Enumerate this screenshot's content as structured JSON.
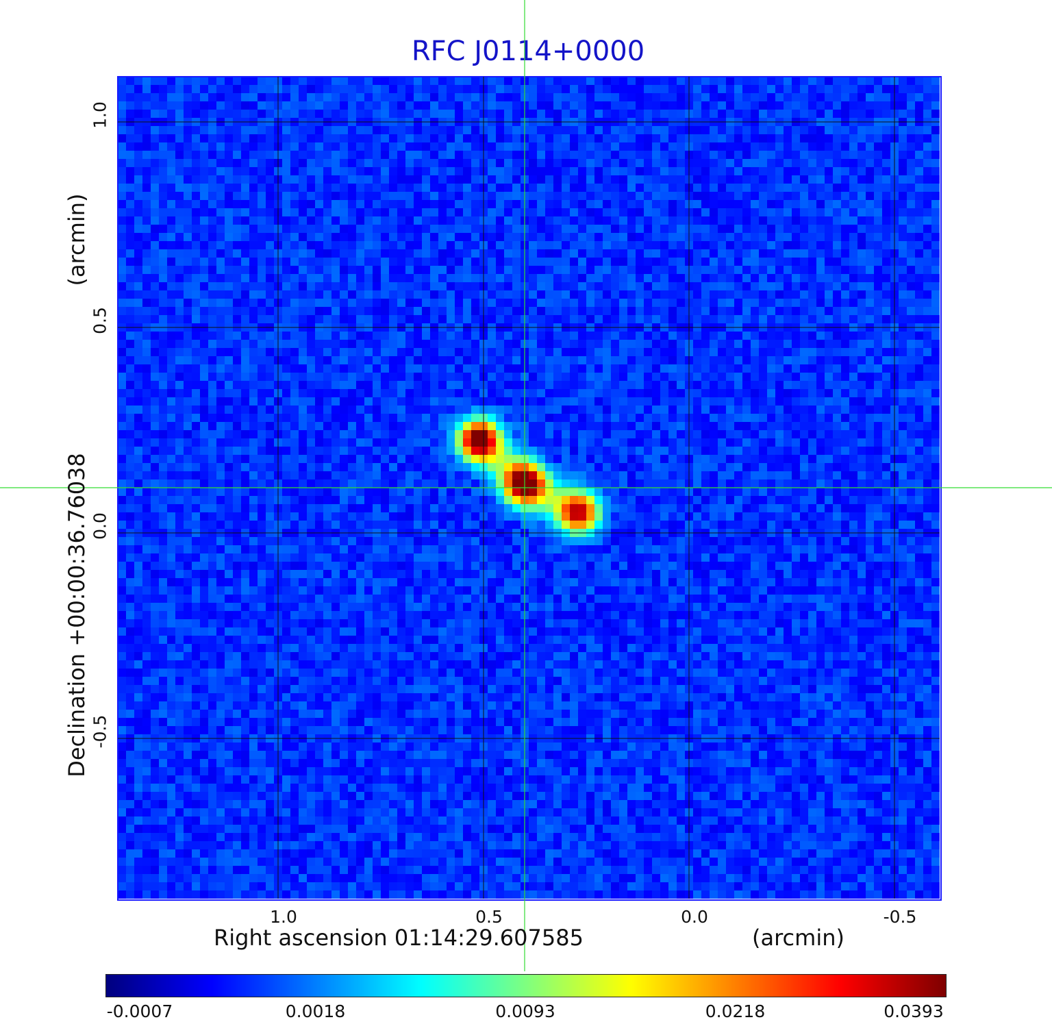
{
  "chart_data": {
    "type": "heatmap",
    "title": "RFC J0114+0000",
    "xlabel": "Right ascension  01:14:29.607585",
    "xunit": "(arcmin)",
    "ylabel": "Declination  +00:00:36.76038",
    "yunit": "(arcmin)",
    "x_axis_reversed": true,
    "xlim": [
      1.39,
      -0.61
    ],
    "ylim": [
      -0.89,
      1.11
    ],
    "x_ticks": [
      "1.0",
      "0.5",
      "0.0",
      "-0.5"
    ],
    "x_tick_values": [
      1.0,
      0.5,
      0.0,
      -0.5
    ],
    "y_ticks": [
      "1.0",
      "0.5",
      "0.0",
      "-0.5"
    ],
    "y_tick_values": [
      1.0,
      0.5,
      0.0,
      -0.5
    ],
    "grid": true,
    "crosshair": {
      "x": 0.4,
      "y": 0.11,
      "color": "#33dd33"
    },
    "colormap": "jet",
    "colorbar": {
      "ticks": [
        "-0.0007",
        "0.0018",
        "0.0093",
        "0.0218",
        "0.0393"
      ],
      "tick_values": [
        -0.0007,
        0.0018,
        0.0093,
        0.0218,
        0.0393
      ]
    },
    "background_level": 0.001,
    "sources": [
      {
        "x": 0.51,
        "y": 0.225,
        "peak": 0.0393
      },
      {
        "x": 0.4,
        "y": 0.12,
        "peak": 0.036
      },
      {
        "x": 0.27,
        "y": 0.05,
        "peak": 0.028
      }
    ]
  }
}
